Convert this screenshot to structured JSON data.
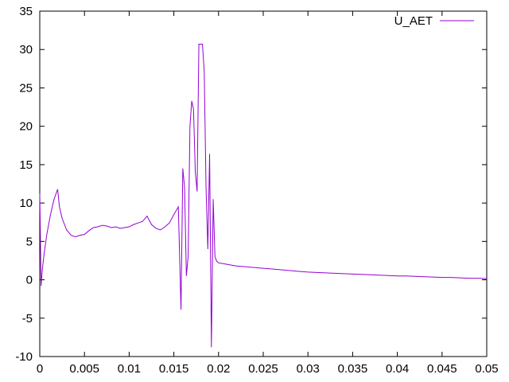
{
  "chart_data": {
    "type": "line",
    "xlim": [
      0,
      0.05
    ],
    "ylim": [
      -10,
      35
    ],
    "x_ticks": [
      "0",
      "0.005",
      "0.01",
      "0.015",
      "0.02",
      "0.025",
      "0.03",
      "0.035",
      "0.04",
      "0.045",
      "0.05"
    ],
    "x_tick_values": [
      0,
      0.005,
      0.01,
      0.015,
      0.02,
      0.025,
      0.03,
      0.035,
      0.04,
      0.045,
      0.05
    ],
    "y_ticks": [
      "-10",
      "-5",
      "0",
      "5",
      "10",
      "15",
      "20",
      "25",
      "30",
      "35"
    ],
    "y_tick_values": [
      -10,
      -5,
      0,
      5,
      10,
      15,
      20,
      25,
      30,
      35
    ],
    "grid": false,
    "legend_position": "top-right",
    "series_color": "#9400d3",
    "series": [
      {
        "name": "U_AET",
        "x": [
          0,
          0.00015,
          0.0003,
          0.0005,
          0.0008,
          0.0012,
          0.0016,
          0.002,
          0.0022,
          0.0025,
          0.003,
          0.0035,
          0.004,
          0.0045,
          0.005,
          0.0055,
          0.006,
          0.0065,
          0.007,
          0.0075,
          0.008,
          0.0085,
          0.009,
          0.0095,
          0.01,
          0.0105,
          0.011,
          0.0115,
          0.012,
          0.0125,
          0.013,
          0.0135,
          0.014,
          0.0145,
          0.015,
          0.0155,
          0.0158,
          0.016,
          0.0162,
          0.0164,
          0.0166,
          0.0168,
          0.017,
          0.0172,
          0.0174,
          0.0176,
          0.0178,
          0.018,
          0.0182,
          0.0184,
          0.0186,
          0.0188,
          0.019,
          0.0192,
          0.0194,
          0.0196,
          0.0198,
          0.02,
          0.0205,
          0.021,
          0.022,
          0.023,
          0.024,
          0.025,
          0.026,
          0.027,
          0.028,
          0.029,
          0.03,
          0.031,
          0.032,
          0.033,
          0.034,
          0.035,
          0.036,
          0.037,
          0.038,
          0.039,
          0.04,
          0.041,
          0.042,
          0.043,
          0.044,
          0.045,
          0.046,
          0.047,
          0.048,
          0.049,
          0.05
        ],
        "y": [
          11.2,
          -0.8,
          1.5,
          3.5,
          6.0,
          8.5,
          10.5,
          11.8,
          9.5,
          8.0,
          6.5,
          5.8,
          5.6,
          5.8,
          5.9,
          6.4,
          6.8,
          6.9,
          7.1,
          7.0,
          6.8,
          6.9,
          6.7,
          6.8,
          6.9,
          7.2,
          7.4,
          7.6,
          8.3,
          7.2,
          6.7,
          6.5,
          6.9,
          7.4,
          8.5,
          9.5,
          -3.9,
          14.5,
          12.0,
          0.5,
          3.0,
          20.0,
          23.3,
          22.2,
          14.0,
          11.5,
          30.7,
          30.7,
          30.7,
          27.0,
          12.0,
          4.0,
          16.4,
          -8.8,
          10.5,
          3.0,
          2.4,
          2.2,
          2.1,
          2.0,
          1.8,
          1.7,
          1.6,
          1.5,
          1.4,
          1.3,
          1.2,
          1.1,
          1.0,
          0.95,
          0.9,
          0.85,
          0.8,
          0.75,
          0.7,
          0.65,
          0.6,
          0.55,
          0.5,
          0.5,
          0.45,
          0.4,
          0.35,
          0.3,
          0.3,
          0.25,
          0.2,
          0.2,
          0.15
        ]
      }
    ]
  }
}
